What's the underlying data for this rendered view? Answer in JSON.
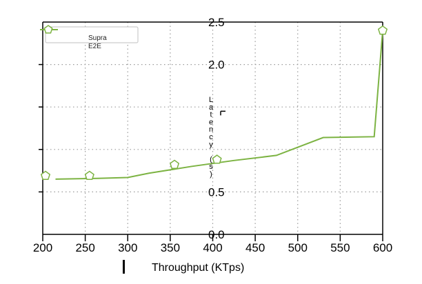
{
  "chart_data": {
    "type": "line",
    "xlabel": "Throughput (KTps)",
    "ylabel": "Latency (s)",
    "xlim": [
      200,
      600
    ],
    "ylim": [
      0.0,
      2.5
    ],
    "xticks": [
      200,
      250,
      300,
      350,
      400,
      450,
      500,
      550,
      600
    ],
    "xtick_labels": [
      "200",
      "250",
      "300",
      "350",
      "400",
      "450",
      "500",
      "550",
      "600"
    ],
    "yticks": [
      0.0,
      0.5,
      1.0,
      1.5,
      2.0,
      2.5
    ],
    "ytick_labels": [
      "0.0",
      "0.5",
      "",
      "",
      "2.0",
      "2.5"
    ],
    "grid": true,
    "legend_position": "top-left",
    "colors": {
      "series": "#7cb342",
      "grid": "#999999",
      "axis": "#000000"
    },
    "series": [
      {
        "name": "Supra",
        "style": "line",
        "x": [
          215,
          265,
          300,
          325,
          375,
          425,
          475,
          530,
          590,
          600
        ],
        "y": [
          0.65,
          0.66,
          0.67,
          0.72,
          0.8,
          0.87,
          0.93,
          1.14,
          1.15,
          2.4
        ]
      },
      {
        "name": "E2E",
        "style": "pentagon-markers",
        "x": [
          200,
          255,
          355,
          405,
          600
        ],
        "y": [
          0.69,
          0.69,
          0.82,
          0.88,
          2.4
        ]
      }
    ]
  }
}
